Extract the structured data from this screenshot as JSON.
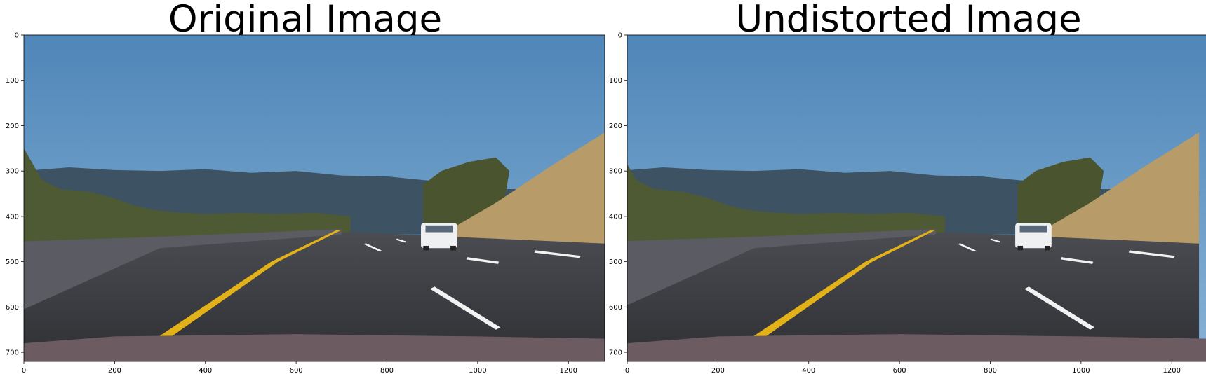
{
  "panels": [
    {
      "title": "Original Image",
      "image_description_icon": "highway-road-scene-image",
      "x_ticks": [
        "0",
        "200",
        "400",
        "600",
        "800",
        "1000",
        "1200"
      ],
      "y_ticks": [
        "0",
        "100",
        "200",
        "300",
        "400",
        "500",
        "600",
        "700"
      ]
    },
    {
      "title": "Undistorted Image",
      "image_description_icon": "highway-road-scene-image",
      "x_ticks": [
        "0",
        "200",
        "400",
        "600",
        "800",
        "1000",
        "1200"
      ],
      "y_ticks": [
        "0",
        "100",
        "200",
        "300",
        "400",
        "500",
        "600",
        "700"
      ]
    }
  ],
  "axis_range": {
    "x": [
      0,
      1280
    ],
    "y": [
      0,
      720
    ]
  },
  "colors": {
    "sky_top": "#4f86b8",
    "sky_bottom": "#87b2d6",
    "hills": "#3d5263",
    "trees": "#4e5a34",
    "dry_hill": "#b79c6a",
    "road": "#3d3f44",
    "wall": "#5b5b63",
    "yellow_line": "#e2b218",
    "white_line": "#f2f2f2",
    "hood": "#6c5c62"
  }
}
